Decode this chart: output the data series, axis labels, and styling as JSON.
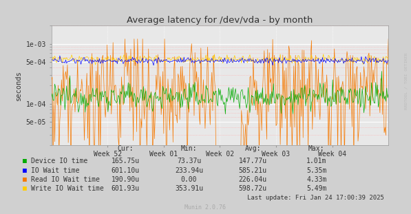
{
  "title": "Average latency for /dev/vda - by month",
  "ylabel": "seconds",
  "bg_color": "#d0d0d0",
  "plot_bg_color": "#e8e8e8",
  "grid_color_major": "#ffffff",
  "grid_color_minor": "#ffaaaa",
  "x_tick_labels": [
    "Week 52",
    "Week 01",
    "Week 02",
    "Week 03",
    "Week 04"
  ],
  "ylim_log_min": 2e-05,
  "ylim_log_max": 0.002,
  "yticks": [
    5e-05,
    0.0001,
    0.0005,
    0.001
  ],
  "ytick_labels": [
    "5e-05",
    "1e-04",
    "5e-04",
    "1e-03"
  ],
  "legend_items": [
    {
      "label": "Device IO time",
      "color": "#00aa00"
    },
    {
      "label": "IO Wait time",
      "color": "#0000ff"
    },
    {
      "label": "Read IO Wait time",
      "color": "#f57900"
    },
    {
      "label": "Write IO Wait time",
      "color": "#ffcc00"
    }
  ],
  "table_headers": [
    "Cur:",
    "Min:",
    "Avg:",
    "Max:"
  ],
  "table_data": [
    [
      "165.75u",
      "73.37u",
      "147.77u",
      "1.01m"
    ],
    [
      "601.10u",
      "233.94u",
      "585.21u",
      "5.35m"
    ],
    [
      "190.90u",
      "0.00",
      "226.04u",
      "4.33m"
    ],
    [
      "601.93u",
      "353.91u",
      "598.72u",
      "5.49m"
    ]
  ],
  "last_update": "Last update: Fri Jan 24 17:00:39 2025",
  "munin_version": "Munin 2.0.76",
  "watermark": "RRDTOOL / TOBI OETIKER",
  "n_points": 400
}
